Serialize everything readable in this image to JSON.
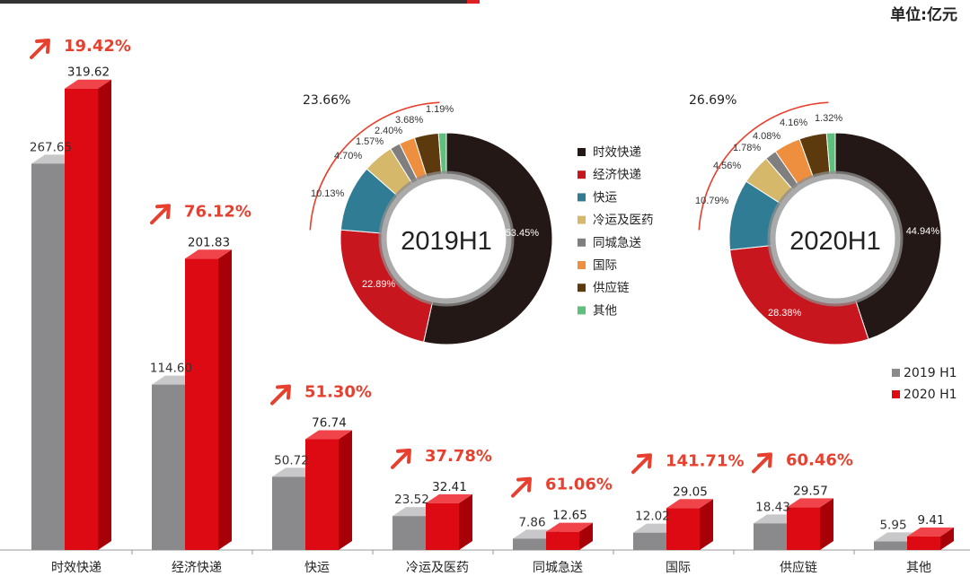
{
  "unit_label": "单位:亿元",
  "colors": {
    "gray_front": "#8a8a8c",
    "gray_top": "#c8c8ca",
    "gray_side": "#6c6c6e",
    "red_front": "#dd0a13",
    "red_top": "#f0444a",
    "red_side": "#a80008",
    "arrow": "#e8402f",
    "growth_text": "#e8402f",
    "axis": "#999999"
  },
  "chart_data": [
    {
      "type": "bar",
      "categories": [
        "时效快递",
        "经济快递",
        "快运",
        "冷运及医药",
        "同城急送",
        "国际",
        "供应链",
        "其他"
      ],
      "series": [
        {
          "name": "2019 H1",
          "values": [
            267.65,
            114.6,
            50.72,
            23.52,
            7.86,
            12.02,
            18.43,
            5.95
          ],
          "labels": [
            "267.65",
            "114.60",
            "50.72",
            "23.52",
            "7.86",
            "12.02",
            "18.43",
            "5.95"
          ]
        },
        {
          "name": "2020 H1",
          "values": [
            319.62,
            201.83,
            76.74,
            32.41,
            12.65,
            29.05,
            29.57,
            9.41
          ],
          "labels": [
            "319.62",
            "201.83",
            "76.74",
            "32.41",
            "12.65",
            "29.05",
            "29.57",
            "9.41"
          ]
        }
      ],
      "growth": [
        "19.42%",
        "76.12%",
        "51.30%",
        "37.78%",
        "61.06%",
        "141.71%",
        "60.46%"
      ],
      "ylim": [
        0,
        330
      ],
      "legend": "bottom-right"
    },
    {
      "type": "pie",
      "center_label": "2019H1",
      "labels": [
        "时效快递",
        "经济快递",
        "快运",
        "冷运及医药",
        "同城急送",
        "国际",
        "供应链",
        "其他"
      ],
      "values": [
        53.45,
        22.89,
        10.13,
        4.7,
        1.57,
        2.4,
        3.68,
        1.19
      ],
      "value_labels": [
        "53.45%",
        "22.89%",
        "10.13%",
        "4.70%",
        "1.57%",
        "2.40%",
        "3.68%",
        "1.19%"
      ],
      "group_label": "23.66%",
      "colors": [
        "#231815",
        "#c8161e",
        "#2f7c94",
        "#d6b86b",
        "#7f7f7f",
        "#ed8f3f",
        "#5c3a0e",
        "#5fc07d"
      ]
    },
    {
      "type": "pie",
      "center_label": "2020H1",
      "labels": [
        "时效快递",
        "经济快递",
        "快运",
        "冷运及医药",
        "同城急送",
        "国际",
        "供应链",
        "其他"
      ],
      "values": [
        44.94,
        28.38,
        10.79,
        4.56,
        1.78,
        4.08,
        4.16,
        1.32
      ],
      "value_labels": [
        "44.94%",
        "28.38%",
        "10.79%",
        "4.56%",
        "1.78%",
        "4.08%",
        "4.16%",
        "1.32%"
      ],
      "group_label": "26.69%",
      "colors": [
        "#231815",
        "#c8161e",
        "#2f7c94",
        "#d6b86b",
        "#7f7f7f",
        "#ed8f3f",
        "#5c3a0e",
        "#5fc07d"
      ]
    }
  ],
  "donut_legend": [
    "时效快递",
    "经济快递",
    "快运",
    "冷运及医药",
    "同城急送",
    "国际",
    "供应链",
    "其他"
  ],
  "bar_legend": [
    "2019 H1",
    "2020 H1"
  ]
}
